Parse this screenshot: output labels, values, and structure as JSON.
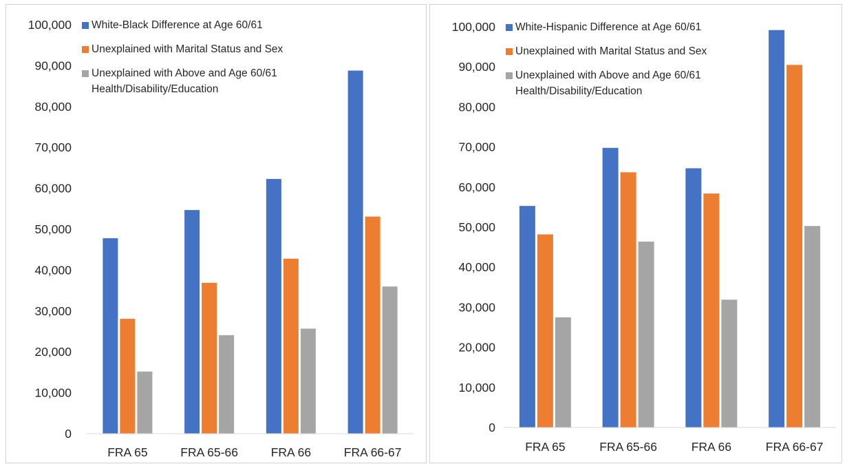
{
  "colors": {
    "blue": "#4472C4",
    "orange": "#ED7D31",
    "gray": "#A5A5A5",
    "axis": "#d9d9d9",
    "text": "#262626"
  },
  "chart_data": [
    {
      "type": "bar",
      "categories": [
        "FRA 65",
        "FRA 65-66",
        "FRA 66",
        "FRA 66-67"
      ],
      "ylim": [
        0,
        100000
      ],
      "yticks": [
        "0",
        "10,000",
        "20,000",
        "30,000",
        "40,000",
        "50,000",
        "60,000",
        "70,000",
        "80,000",
        "90,000",
        "100,000"
      ],
      "grid": false,
      "legend_position": "top",
      "series": [
        {
          "name": "White-Black Difference at Age 60/61",
          "color": "#4472C4",
          "values": [
            47800,
            54700,
            62300,
            88800
          ]
        },
        {
          "name": "Unexplained with Marital Status and Sex",
          "color": "#ED7D31",
          "values": [
            28100,
            36900,
            42800,
            53100
          ]
        },
        {
          "name": "Unexplained with Above and Age 60/61 Health/Disability/Education",
          "color": "#A5A5A5",
          "values": [
            15200,
            24100,
            25700,
            36000
          ]
        }
      ]
    },
    {
      "type": "bar",
      "categories": [
        "FRA 65",
        "FRA 65-66",
        "FRA 66",
        "FRA 66-67"
      ],
      "ylim": [
        0,
        100000
      ],
      "yticks": [
        "0",
        "10,000",
        "20,000",
        "30,000",
        "40,000",
        "50,000",
        "60,000",
        "70,000",
        "80,000",
        "90,000",
        "100,000"
      ],
      "grid": false,
      "legend_position": "top",
      "series": [
        {
          "name": "White-Hispanic Difference at Age 60/61",
          "color": "#4472C4",
          "values": [
            55300,
            69800,
            64700,
            99200
          ]
        },
        {
          "name": "Unexplained with Marital Status and Sex",
          "color": "#ED7D31",
          "values": [
            48200,
            63700,
            58400,
            90500
          ]
        },
        {
          "name": "Unexplained with Above and Age 60/61 Health/Disability/Education",
          "color": "#A5A5A5",
          "values": [
            27500,
            46400,
            31900,
            50300
          ]
        }
      ]
    }
  ]
}
